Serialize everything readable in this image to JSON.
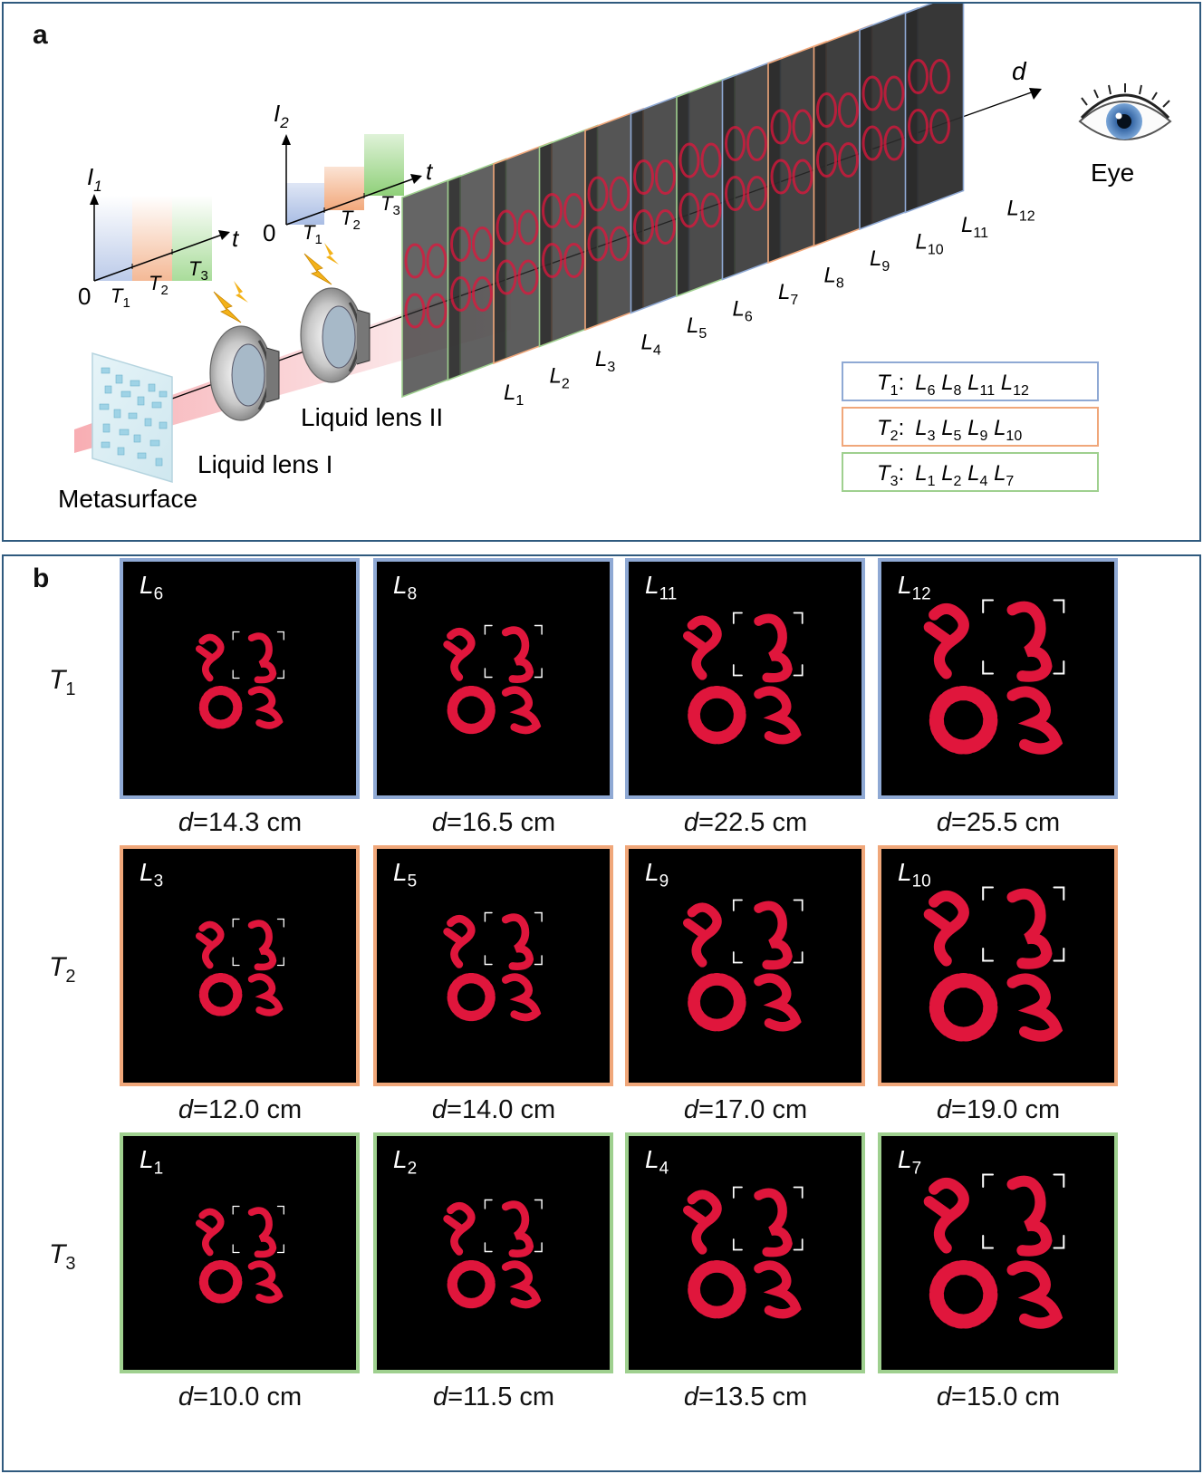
{
  "panel_a": {
    "label": "a",
    "plot1": {
      "y_axis": "I",
      "y_sub": "1",
      "x_axis": "t",
      "origin": "0",
      "ticks": [
        {
          "main": "T",
          "sub": "1"
        },
        {
          "main": "T",
          "sub": "2"
        },
        {
          "main": "T",
          "sub": "3"
        }
      ]
    },
    "plot2": {
      "y_axis": "I",
      "y_sub": "2",
      "x_axis": "t",
      "origin": "0",
      "ticks": [
        {
          "main": "T",
          "sub": "1"
        },
        {
          "main": "T",
          "sub": "2"
        },
        {
          "main": "T",
          "sub": "3"
        }
      ]
    },
    "axis_d": "d",
    "eye_label": "Eye",
    "lens1_label": "Liquid lens I",
    "lens2_label": "Liquid lens II",
    "metasurface_label": "Metasurface",
    "plane_labels": [
      {
        "main": "L",
        "sub": "1"
      },
      {
        "main": "L",
        "sub": "2"
      },
      {
        "main": "L",
        "sub": "3"
      },
      {
        "main": "L",
        "sub": "4"
      },
      {
        "main": "L",
        "sub": "5"
      },
      {
        "main": "L",
        "sub": "6"
      },
      {
        "main": "L",
        "sub": "7"
      },
      {
        "main": "L",
        "sub": "8"
      },
      {
        "main": "L",
        "sub": "9"
      },
      {
        "main": "L",
        "sub": "10"
      },
      {
        "main": "L",
        "sub": "11"
      },
      {
        "main": "L",
        "sub": "12"
      }
    ],
    "legend": [
      {
        "main": "T",
        "sub": "1",
        "sep": ":",
        "items": [
          {
            "main": "L",
            "sub": "6"
          },
          {
            "main": "L",
            "sub": "8"
          },
          {
            "main": "L",
            "sub": "11"
          },
          {
            "main": "L",
            "sub": "12"
          }
        ],
        "color": "#8fa9d4"
      },
      {
        "main": "T",
        "sub": "2",
        "sep": ":",
        "items": [
          {
            "main": "L",
            "sub": "3"
          },
          {
            "main": "L",
            "sub": "5"
          },
          {
            "main": "L",
            "sub": "9"
          },
          {
            "main": "L",
            "sub": "10"
          }
        ],
        "color": "#f0a77a"
      },
      {
        "main": "T",
        "sub": "3",
        "sep": ":",
        "items": [
          {
            "main": "L",
            "sub": "1"
          },
          {
            "main": "L",
            "sub": "2"
          },
          {
            "main": "L",
            "sub": "4"
          },
          {
            "main": "L",
            "sub": "7"
          }
        ],
        "color": "#9fd08f"
      }
    ]
  },
  "panel_b": {
    "label": "b",
    "rows": [
      {
        "label_main": "T",
        "label_sub": "1",
        "color": "#8fa9d4",
        "tiles": [
          {
            "main": "L",
            "sub": "6",
            "caption_var": "d",
            "caption_val": "=14.3 cm"
          },
          {
            "main": "L",
            "sub": "8",
            "caption_var": "d",
            "caption_val": "=16.5 cm"
          },
          {
            "main": "L",
            "sub": "11",
            "caption_var": "d",
            "caption_val": "=22.5 cm"
          },
          {
            "main": "L",
            "sub": "12",
            "caption_var": "d",
            "caption_val": "=25.5 cm"
          }
        ]
      },
      {
        "label_main": "T",
        "label_sub": "2",
        "color": "#f0a77a",
        "tiles": [
          {
            "main": "L",
            "sub": "3",
            "caption_var": "d",
            "caption_val": "=12.0 cm"
          },
          {
            "main": "L",
            "sub": "5",
            "caption_var": "d",
            "caption_val": "=14.0 cm"
          },
          {
            "main": "L",
            "sub": "9",
            "caption_var": "d",
            "caption_val": "=17.0 cm"
          },
          {
            "main": "L",
            "sub": "10",
            "caption_var": "d",
            "caption_val": "=19.0 cm"
          }
        ]
      },
      {
        "label_main": "T",
        "label_sub": "3",
        "color": "#9fd08f",
        "tiles": [
          {
            "main": "L",
            "sub": "1",
            "caption_var": "d",
            "caption_val": "=10.0 cm"
          },
          {
            "main": "L",
            "sub": "2",
            "caption_var": "d",
            "caption_val": "=11.5 cm"
          },
          {
            "main": "L",
            "sub": "4",
            "caption_var": "d",
            "caption_val": "=13.5 cm"
          },
          {
            "main": "L",
            "sub": "7",
            "caption_var": "d",
            "caption_val": "=15.0 cm"
          }
        ]
      }
    ]
  },
  "colors": {
    "frame": "#2f5a7e",
    "t1": "#8fa9d4",
    "t2": "#f0a77a",
    "t3": "#9fd08f",
    "hologram": "#e0163c",
    "beam": "#f6a3a8"
  }
}
